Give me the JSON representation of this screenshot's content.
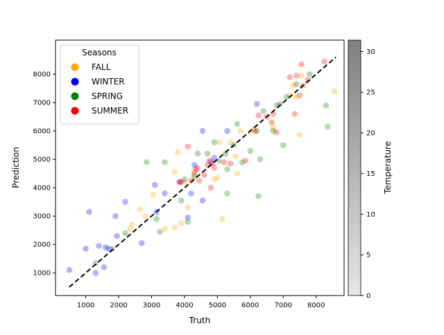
{
  "chart_data": {
    "type": "scatter",
    "xlabel": "Truth",
    "ylabel": "Prediction",
    "xlim": [
      80,
      8850
    ],
    "ylim": [
      200,
      9200
    ],
    "x_ticks": [
      1000,
      2000,
      3000,
      4000,
      5000,
      6000,
      7000,
      8000
    ],
    "y_ticks": [
      1000,
      2000,
      3000,
      4000,
      5000,
      6000,
      7000,
      8000
    ],
    "grid": false,
    "reference_line": {
      "style": "dashed",
      "color": "#000000",
      "points": [
        [
          500,
          500
        ],
        [
          8600,
          8600
        ]
      ]
    },
    "legend": {
      "title": "Seasons",
      "placement": "top-left",
      "entries": [
        {
          "label": "FALL",
          "color": "#ffa500"
        },
        {
          "label": "WINTER",
          "color": "#0000ff"
        },
        {
          "label": "SPRING",
          "color": "#008000"
        },
        {
          "label": "SUMMER",
          "color": "#ff0000"
        }
      ]
    },
    "colorbar": {
      "label": "Temperature",
      "range": [
        0,
        31.4
      ],
      "ticks": [
        0,
        5,
        10,
        15,
        20,
        25,
        30
      ]
    },
    "series": [
      {
        "name": "FALL",
        "points": [
          {
            "x": 2350,
            "y": 2550
          },
          {
            "x": 2400,
            "y": 2700
          },
          {
            "x": 2650,
            "y": 3250
          },
          {
            "x": 2800,
            "y": 3000
          },
          {
            "x": 3050,
            "y": 3750
          },
          {
            "x": 3400,
            "y": 2550
          },
          {
            "x": 3700,
            "y": 2600
          },
          {
            "x": 3800,
            "y": 5250
          },
          {
            "x": 3900,
            "y": 2750
          },
          {
            "x": 3700,
            "y": 4550
          },
          {
            "x": 4000,
            "y": 4200
          },
          {
            "x": 4100,
            "y": 3300
          },
          {
            "x": 4300,
            "y": 4450
          },
          {
            "x": 4900,
            "y": 4300
          },
          {
            "x": 5000,
            "y": 4350
          },
          {
            "x": 5050,
            "y": 5600
          },
          {
            "x": 5150,
            "y": 2900
          },
          {
            "x": 5400,
            "y": 5600
          },
          {
            "x": 5550,
            "y": 5100
          },
          {
            "x": 5600,
            "y": 4500
          },
          {
            "x": 5700,
            "y": 6000
          },
          {
            "x": 6000,
            "y": 5950
          },
          {
            "x": 6100,
            "y": 6050
          },
          {
            "x": 6700,
            "y": 6100
          },
          {
            "x": 7200,
            "y": 7250
          },
          {
            "x": 7300,
            "y": 7600
          },
          {
            "x": 7400,
            "y": 7200
          },
          {
            "x": 7500,
            "y": 5850
          },
          {
            "x": 7550,
            "y": 7950
          },
          {
            "x": 8550,
            "y": 7400
          }
        ]
      },
      {
        "name": "WINTER",
        "points": [
          {
            "x": 500,
            "y": 1100
          },
          {
            "x": 1000,
            "y": 1850
          },
          {
            "x": 1100,
            "y": 3150
          },
          {
            "x": 1300,
            "y": 1000
          },
          {
            "x": 1400,
            "y": 1950
          },
          {
            "x": 1550,
            "y": 1200
          },
          {
            "x": 1600,
            "y": 1900
          },
          {
            "x": 1700,
            "y": 1850
          },
          {
            "x": 1900,
            "y": 3000
          },
          {
            "x": 1950,
            "y": 2300
          },
          {
            "x": 2200,
            "y": 3500
          },
          {
            "x": 2700,
            "y": 2050
          },
          {
            "x": 3100,
            "y": 4100
          },
          {
            "x": 3150,
            "y": 3150
          },
          {
            "x": 3400,
            "y": 3800
          },
          {
            "x": 3850,
            "y": 4200
          },
          {
            "x": 4100,
            "y": 2950
          },
          {
            "x": 4200,
            "y": 3800
          },
          {
            "x": 4300,
            "y": 4800
          },
          {
            "x": 4550,
            "y": 6000
          },
          {
            "x": 4550,
            "y": 3550
          },
          {
            "x": 4800,
            "y": 4900
          },
          {
            "x": 4900,
            "y": 5050
          },
          {
            "x": 5300,
            "y": 6000
          },
          {
            "x": 6200,
            "y": 6950
          }
        ]
      },
      {
        "name": "SPRING",
        "points": [
          {
            "x": 1300,
            "y": 1350
          },
          {
            "x": 1800,
            "y": 1850
          },
          {
            "x": 2200,
            "y": 2400
          },
          {
            "x": 2850,
            "y": 4900
          },
          {
            "x": 3150,
            "y": 2900
          },
          {
            "x": 3250,
            "y": 2450
          },
          {
            "x": 3400,
            "y": 4900
          },
          {
            "x": 3900,
            "y": 3550
          },
          {
            "x": 4000,
            "y": 4300
          },
          {
            "x": 4100,
            "y": 2800
          },
          {
            "x": 4300,
            "y": 4400
          },
          {
            "x": 4400,
            "y": 5200
          },
          {
            "x": 4700,
            "y": 5200
          },
          {
            "x": 4900,
            "y": 5600
          },
          {
            "x": 5050,
            "y": 4950
          },
          {
            "x": 5250,
            "y": 5200
          },
          {
            "x": 5300,
            "y": 3800
          },
          {
            "x": 5300,
            "y": 4650
          },
          {
            "x": 5500,
            "y": 5500
          },
          {
            "x": 5600,
            "y": 6250
          },
          {
            "x": 5750,
            "y": 4900
          },
          {
            "x": 6000,
            "y": 5300
          },
          {
            "x": 6200,
            "y": 6000
          },
          {
            "x": 6250,
            "y": 3700
          },
          {
            "x": 6300,
            "y": 5000
          },
          {
            "x": 6400,
            "y": 6700
          },
          {
            "x": 6700,
            "y": 6000
          },
          {
            "x": 6800,
            "y": 6900
          },
          {
            "x": 6900,
            "y": 6950
          },
          {
            "x": 7000,
            "y": 5500
          },
          {
            "x": 7100,
            "y": 7200
          },
          {
            "x": 7400,
            "y": 7650
          },
          {
            "x": 7800,
            "y": 8000
          },
          {
            "x": 8300,
            "y": 6900
          },
          {
            "x": 8350,
            "y": 6150
          }
        ]
      },
      {
        "name": "SUMMER",
        "points": [
          {
            "x": 3850,
            "y": 4200
          },
          {
            "x": 3900,
            "y": 4200
          },
          {
            "x": 4100,
            "y": 5450
          },
          {
            "x": 4200,
            "y": 4250
          },
          {
            "x": 4300,
            "y": 4550
          },
          {
            "x": 4350,
            "y": 4650
          },
          {
            "x": 4400,
            "y": 4700
          },
          {
            "x": 4450,
            "y": 4250
          },
          {
            "x": 4600,
            "y": 4450
          },
          {
            "x": 4700,
            "y": 4800
          },
          {
            "x": 4750,
            "y": 4950
          },
          {
            "x": 4800,
            "y": 4000
          },
          {
            "x": 4850,
            "y": 4850
          },
          {
            "x": 4900,
            "y": 4700
          },
          {
            "x": 5200,
            "y": 4900
          },
          {
            "x": 5400,
            "y": 4850
          },
          {
            "x": 5850,
            "y": 4950
          },
          {
            "x": 6150,
            "y": 6000
          },
          {
            "x": 6250,
            "y": 6550
          },
          {
            "x": 6500,
            "y": 6500
          },
          {
            "x": 6650,
            "y": 6300
          },
          {
            "x": 6700,
            "y": 6600
          },
          {
            "x": 6800,
            "y": 5950
          },
          {
            "x": 7200,
            "y": 7900
          },
          {
            "x": 7350,
            "y": 6600
          },
          {
            "x": 7400,
            "y": 7950
          },
          {
            "x": 7500,
            "y": 7250
          },
          {
            "x": 7550,
            "y": 8350
          },
          {
            "x": 7600,
            "y": 7600
          },
          {
            "x": 7750,
            "y": 7800
          },
          {
            "x": 8250,
            "y": 8450
          }
        ]
      }
    ]
  }
}
